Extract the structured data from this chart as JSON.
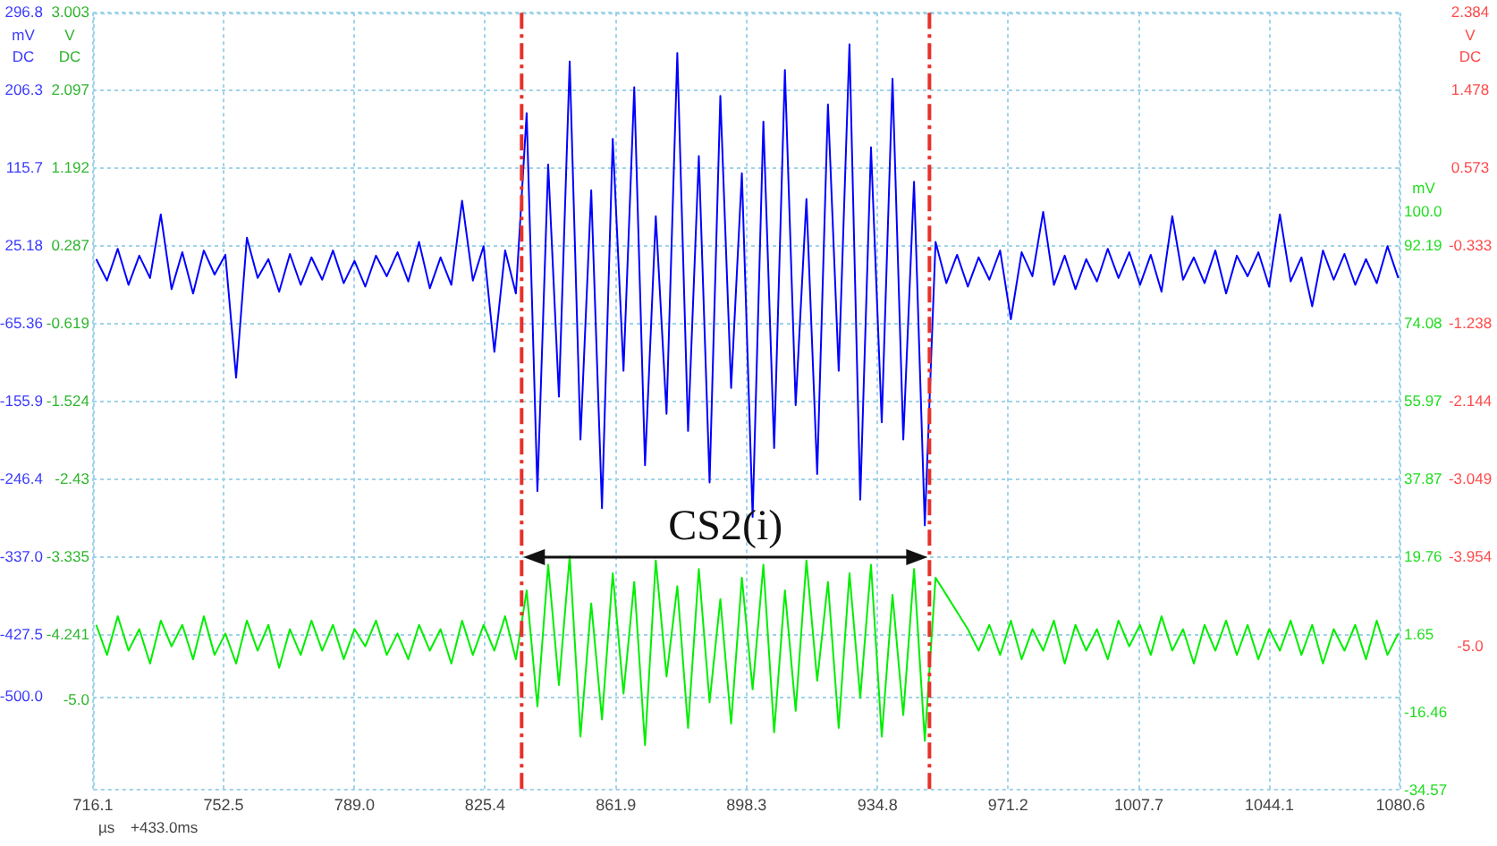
{
  "chart_data": {
    "type": "line",
    "xlabel": "µs",
    "ylabel": "mV DC",
    "y3label": "V DC",
    "y2label": "mV",
    "annotations": [
      "+433.0ms",
      "CS2(i)",
      "V DC",
      "2.384",
      "1.478",
      "0.573",
      "-0.333",
      "-1.238",
      "-2.144",
      "-3.049",
      "-3.954",
      "-5.0"
    ],
    "x": [
      717,
      720,
      723,
      726,
      729,
      732,
      735,
      738,
      741,
      744,
      747,
      750,
      753,
      756,
      759,
      762,
      765,
      768,
      771,
      774,
      777,
      780,
      783,
      786,
      789,
      792,
      795,
      798,
      801,
      804,
      807,
      810,
      813,
      816,
      819,
      822,
      825,
      828,
      831,
      834,
      837,
      840,
      843,
      846,
      849,
      852,
      855,
      858,
      861,
      864,
      867,
      870,
      873,
      876,
      879,
      882,
      885,
      888,
      891,
      894,
      897,
      900,
      903,
      906,
      909,
      912,
      915,
      918,
      921,
      924,
      927,
      930,
      933,
      936,
      939,
      942,
      945,
      948,
      951,
      954,
      957,
      960,
      963,
      966,
      969,
      972,
      975,
      978,
      981,
      984,
      987,
      990,
      993,
      996,
      999,
      1002,
      1005,
      1008,
      1011,
      1014,
      1017,
      1020,
      1023,
      1026,
      1029,
      1032,
      1035,
      1038,
      1041,
      1044,
      1047,
      1050,
      1053,
      1056,
      1059,
      1062,
      1065,
      1068,
      1071,
      1074,
      1077,
      1080
    ],
    "series": [
      {
        "color": "#0000ff",
        "values": [
          10,
          -15,
          22,
          -20,
          14,
          -12,
          62,
          -25,
          18,
          -30,
          20,
          -8,
          15,
          -128,
          35,
          -12,
          10,
          -28,
          16,
          -20,
          12,
          -14,
          20,
          -18,
          8,
          -22,
          14,
          -10,
          18,
          -16,
          30,
          -24,
          12,
          -20,
          78,
          -15,
          25,
          -98,
          20,
          -30,
          180,
          -260,
          120,
          -150,
          240,
          -200,
          90,
          -280,
          150,
          -120,
          210,
          -230,
          60,
          -170,
          250,
          -190,
          130,
          -250,
          200,
          -140,
          110,
          -290,
          170,
          -210,
          230,
          -160,
          80,
          -240,
          190,
          -120,
          260,
          -270,
          140,
          -180,
          220,
          -200,
          100,
          -300,
          30,
          -18,
          15,
          -22,
          12,
          -14,
          20,
          -60,
          18,
          -10,
          65,
          -20,
          14,
          -25,
          10,
          -16,
          22,
          -12,
          18,
          -20,
          15,
          -28,
          60,
          -14,
          12,
          -18,
          20,
          -30,
          14,
          -10,
          18,
          -22,
          62,
          -16,
          12,
          -45,
          20,
          -14,
          16,
          -20,
          10,
          -18,
          25,
          -12
        ]
      },
      {
        "color": "#00ee00",
        "axis": "y2",
        "values": [
          4,
          -3,
          6,
          -2,
          3,
          -5,
          5,
          -1,
          4,
          -4,
          6,
          -3,
          2,
          -5,
          5,
          -2,
          4,
          -6,
          3,
          -3,
          5,
          -2,
          4,
          -4,
          3,
          -1,
          5,
          -3,
          2,
          -4,
          4,
          -2,
          3,
          -5,
          5,
          -3,
          4,
          -2,
          6,
          -4,
          12,
          -15,
          18,
          -10,
          20,
          -22,
          9,
          -18,
          16,
          -12,
          14,
          -24,
          19,
          -8,
          13,
          -20,
          17,
          -14,
          10,
          -19,
          15,
          -11,
          18,
          -21,
          12,
          -16,
          19,
          -9,
          14,
          -20,
          16,
          -13,
          18,
          -22,
          11,
          -17,
          17,
          -23,
          15,
          11,
          7,
          3,
          -2,
          4,
          -3,
          5,
          -4,
          3,
          -2,
          5,
          -5,
          4,
          -2,
          3,
          -4,
          5,
          -1,
          4,
          -3,
          6,
          -2,
          3,
          -5,
          4,
          -2,
          5,
          -3,
          4,
          -4,
          3,
          -2,
          5,
          -3,
          4,
          -5,
          3,
          -2,
          4,
          -4,
          5,
          -3,
          2
        ]
      }
    ],
    "xlim": [
      716.1,
      1080.6
    ],
    "xticks": [
      716.1,
      752.5,
      {
        "value": 789.0,
        "label": "789.0"
      },
      825.4,
      861.9,
      898.3,
      934.8,
      971.2,
      1007.7,
      1044.1,
      1080.6
    ],
    "ylim": [
      -608.6,
      296.8
    ],
    "yticks": [
      296.8,
      206.3,
      115.7,
      25.18,
      -65.36,
      -155.9,
      -246.4,
      {
        "value": -337.0,
        "label": "-337.0"
      },
      -427.5,
      {
        "value": -500.0,
        "label": "-500.0"
      }
    ],
    "y3lim": [
      -6.051,
      3.003
    ],
    "y3ticks": [
      3.003,
      2.097,
      1.192,
      0.287,
      -0.619,
      -1.524,
      -2.43,
      -3.335,
      -4.241,
      {
        "value": -5.0,
        "label": "-5.0"
      }
    ],
    "y2lim": [
      -34.57,
      146.52
    ],
    "y2ticks": [
      {
        "value": 100.0,
        "label": "100.0"
      },
      92.19,
      74.08,
      55.97,
      37.87,
      19.76,
      1.65,
      -16.46,
      -34.57
    ],
    "ref_lines": [
      {
        "axis": "x",
        "value": 835.6,
        "color": "#e8302a",
        "line_style": "dashed"
      },
      {
        "axis": "x",
        "value": 949.3,
        "color": "#e8302a",
        "line_style": "dashed"
      }
    ],
    "grid": true
  }
}
